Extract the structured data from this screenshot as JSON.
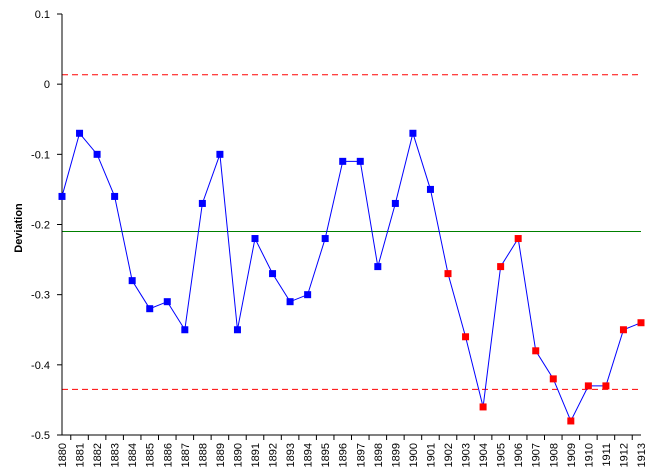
{
  "chart_data": {
    "type": "line",
    "title": "",
    "xlabel": "",
    "ylabel": "Deviation",
    "ylim": [
      -0.5,
      0.1
    ],
    "y_ticks": [
      0.1,
      0,
      -0.1,
      -0.2,
      -0.3,
      -0.4,
      -0.5
    ],
    "y_tick_labels": [
      "0.1",
      "0",
      "-0.1",
      "-0.2",
      "-0.3",
      "-0.4",
      "-0.5"
    ],
    "grid": false,
    "legend": "none",
    "categories": [
      "1880",
      "1881",
      "1882",
      "1883",
      "1884",
      "1885",
      "1886",
      "1887",
      "1888",
      "1889",
      "1890",
      "1891",
      "1892",
      "1893",
      "1894",
      "1895",
      "1896",
      "1897",
      "1898",
      "1899",
      "1900",
      "1901",
      "1902",
      "1903",
      "1904",
      "1905",
      "1906",
      "1907",
      "1908",
      "1909",
      "1910",
      "1911",
      "1912",
      "1913"
    ],
    "series": [
      {
        "values": [
          -0.16,
          -0.07,
          -0.1,
          -0.16,
          -0.28,
          -0.32,
          -0.31,
          -0.35,
          -0.17,
          -0.1,
          -0.35,
          -0.22,
          -0.27,
          -0.31,
          -0.3,
          -0.22,
          -0.11,
          -0.11,
          -0.26,
          -0.17,
          -0.07,
          -0.15,
          -0.27,
          -0.36,
          -0.46,
          -0.26,
          -0.22,
          -0.38,
          -0.42,
          -0.48,
          -0.43,
          -0.43,
          -0.35,
          -0.34
        ],
        "line_color": "#0000ff",
        "marker_colors": [
          "#0000ff",
          "#0000ff",
          "#0000ff",
          "#0000ff",
          "#0000ff",
          "#0000ff",
          "#0000ff",
          "#0000ff",
          "#0000ff",
          "#0000ff",
          "#0000ff",
          "#0000ff",
          "#0000ff",
          "#0000ff",
          "#0000ff",
          "#0000ff",
          "#0000ff",
          "#0000ff",
          "#0000ff",
          "#0000ff",
          "#0000ff",
          "#0000ff",
          "#ff0000",
          "#ff0000",
          "#ff0000",
          "#ff0000",
          "#ff0000",
          "#ff0000",
          "#ff0000",
          "#ff0000",
          "#ff0000",
          "#ff0000",
          "#ff0000",
          "#ff0000"
        ]
      }
    ],
    "reference_lines": [
      {
        "value": 0.0135,
        "color": "#ff0000",
        "style": "dashed"
      },
      {
        "value": -0.21,
        "color": "#008000",
        "style": "solid"
      },
      {
        "value": -0.435,
        "color": "#ff0000",
        "style": "dashed"
      }
    ]
  }
}
